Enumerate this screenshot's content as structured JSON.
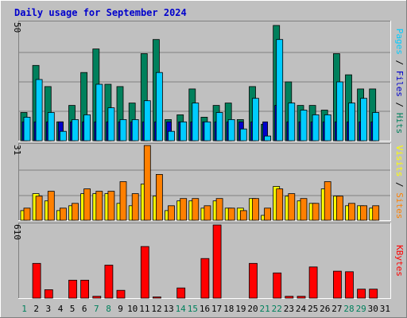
{
  "chart_data": {
    "type": "bar",
    "title": "Daily usage for September 2024",
    "categories": [
      "1",
      "2",
      "3",
      "4",
      "5",
      "6",
      "7",
      "8",
      "9",
      "10",
      "11",
      "12",
      "13",
      "14",
      "15",
      "16",
      "17",
      "18",
      "19",
      "20",
      "21",
      "22",
      "23",
      "24",
      "25",
      "26",
      "27",
      "28",
      "29",
      "30",
      "31"
    ],
    "weekend_days": [
      "1",
      "7",
      "8",
      "14",
      "15",
      "21",
      "22",
      "28",
      "29"
    ],
    "panels": [
      {
        "name": "pages-files-hits",
        "ymax_label": "50",
        "ymax": 50,
        "side_labels": [
          {
            "text": "Pages",
            "color": "#00ccff"
          },
          {
            "text": " / ",
            "color": "#000000"
          },
          {
            "text": "Files",
            "color": "#0000cc"
          },
          {
            "text": " / ",
            "color": "#000000"
          },
          {
            "text": "Hits",
            "color": "#00805c"
          }
        ],
        "series": [
          {
            "name": "Hits",
            "color": "#00805c",
            "values": [
              12,
              32,
              23,
              8,
              15,
              29,
              39,
              24,
              23,
              16,
              37,
              43,
              9,
              11,
              22,
              10,
              15,
              16,
              9,
              23,
              7,
              49,
              25,
              15,
              15,
              13,
              37,
              28,
              22,
              22,
              0
            ]
          },
          {
            "name": "Files",
            "color": "#0000cc",
            "values": [
              8,
              8,
              8,
              8,
              8,
              8,
              8,
              8,
              8,
              8,
              8,
              8,
              8,
              8,
              8,
              8,
              8,
              8,
              8,
              8,
              8,
              15,
              8,
              8,
              8,
              8,
              8,
              8,
              8,
              8,
              0
            ]
          },
          {
            "name": "Pages",
            "color": "#00ccff",
            "values": [
              10,
              26,
              12,
              4,
              9,
              11,
              24,
              14,
              9,
              9,
              17,
              29,
              4,
              8,
              16,
              8,
              12,
              9,
              5,
              18,
              2,
              43,
              16,
              13,
              11,
              11,
              25,
              16,
              18,
              12,
              0
            ]
          }
        ]
      },
      {
        "name": "visits-sites",
        "ymax_label": "31",
        "ymax": 31,
        "side_labels": [
          {
            "text": "Visits",
            "color": "#ffff00"
          },
          {
            "text": " / ",
            "color": "#000000"
          },
          {
            "text": "Sites",
            "color": "#ff8000"
          }
        ],
        "series": [
          {
            "name": "Visits",
            "color": "#ffff00",
            "values": [
              4,
              11,
              8,
              4,
              6,
              11,
              11,
              11,
              7,
              6,
              15,
              10,
              4,
              8,
              8,
              5,
              8,
              5,
              5,
              9,
              2,
              14,
              10,
              8,
              7,
              13,
              10,
              6,
              6,
              5,
              0
            ]
          },
          {
            "name": "Sites",
            "color": "#ff8000",
            "values": [
              5,
              10,
              12,
              5,
              7,
              13,
              12,
              12,
              16,
              11,
              31,
              19,
              6,
              9,
              9,
              6,
              9,
              5,
              4,
              9,
              5,
              13,
              11,
              9,
              7,
              16,
              10,
              7,
              6,
              6,
              0
            ]
          }
        ]
      },
      {
        "name": "kbytes",
        "ymax_label": "610",
        "ymax": 610,
        "side_labels": [
          {
            "text": "KBytes",
            "color": "#ff0000"
          }
        ],
        "series": [
          {
            "name": "KBytes",
            "color": "#ff0000",
            "values": [
              0,
              290,
              70,
              0,
              150,
              150,
              15,
              275,
              65,
              0,
              430,
              10,
              0,
              85,
              0,
              330,
              610,
              0,
              0,
              290,
              0,
              210,
              15,
              15,
              260,
              0,
              225,
              220,
              75,
              75,
              0
            ]
          }
        ]
      }
    ]
  }
}
